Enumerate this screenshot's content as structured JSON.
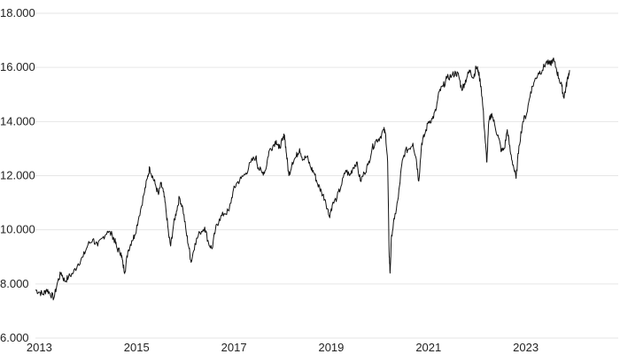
{
  "chart_data": {
    "type": "line",
    "title": "",
    "xlabel": "",
    "ylabel": "",
    "xlim": [
      2012.92,
      2024.9
    ],
    "ylim": [
      6000,
      18000
    ],
    "grid": "horizontal",
    "legend": "none",
    "line_color": "#111111",
    "grid_color": "#e6e6e6",
    "y_ticks": [
      {
        "value": 6000,
        "label": "6.000"
      },
      {
        "value": 8000,
        "label": "8.000"
      },
      {
        "value": 10000,
        "label": "10.000"
      },
      {
        "value": 12000,
        "label": "12.000"
      },
      {
        "value": 14000,
        "label": "14.000"
      },
      {
        "value": 16000,
        "label": "16.000"
      },
      {
        "value": 18000,
        "label": "18.000"
      }
    ],
    "x_ticks": [
      {
        "value": 2013.0,
        "label": "2013"
      },
      {
        "value": 2015.0,
        "label": "2015"
      },
      {
        "value": 2017.0,
        "label": "2017"
      },
      {
        "value": 2019.0,
        "label": "2019"
      },
      {
        "value": 2021.0,
        "label": "2021"
      },
      {
        "value": 2023.0,
        "label": "2023"
      }
    ],
    "series": [
      {
        "values": [
          [
            2012.92,
            7780
          ],
          [
            2013.0,
            7700
          ],
          [
            2013.08,
            7620
          ],
          [
            2013.15,
            7800
          ],
          [
            2013.22,
            7650
          ],
          [
            2013.3,
            7480
          ],
          [
            2013.38,
            8100
          ],
          [
            2013.45,
            8420
          ],
          [
            2013.52,
            8100
          ],
          [
            2013.6,
            8250
          ],
          [
            2013.7,
            8420
          ],
          [
            2013.8,
            8750
          ],
          [
            2013.9,
            9000
          ],
          [
            2014.0,
            9450
          ],
          [
            2014.1,
            9650
          ],
          [
            2014.2,
            9400
          ],
          [
            2014.3,
            9700
          ],
          [
            2014.4,
            9950
          ],
          [
            2014.5,
            9800
          ],
          [
            2014.55,
            9600
          ],
          [
            2014.6,
            9300
          ],
          [
            2014.68,
            9150
          ],
          [
            2014.72,
            8700
          ],
          [
            2014.76,
            8450
          ],
          [
            2014.82,
            9200
          ],
          [
            2014.9,
            9600
          ],
          [
            2014.96,
            9800
          ],
          [
            2015.05,
            10500
          ],
          [
            2015.15,
            11300
          ],
          [
            2015.22,
            11900
          ],
          [
            2015.27,
            12300
          ],
          [
            2015.32,
            12000
          ],
          [
            2015.38,
            11700
          ],
          [
            2015.45,
            11300
          ],
          [
            2015.5,
            11700
          ],
          [
            2015.55,
            11400
          ],
          [
            2015.6,
            10800
          ],
          [
            2015.66,
            9800
          ],
          [
            2015.7,
            9400
          ],
          [
            2015.76,
            10200
          ],
          [
            2015.82,
            10700
          ],
          [
            2015.88,
            11200
          ],
          [
            2015.95,
            10800
          ],
          [
            2016.02,
            9900
          ],
          [
            2016.08,
            9300
          ],
          [
            2016.12,
            8800
          ],
          [
            2016.2,
            9500
          ],
          [
            2016.3,
            9900
          ],
          [
            2016.4,
            10100
          ],
          [
            2016.48,
            9500
          ],
          [
            2016.55,
            9300
          ],
          [
            2016.62,
            10000
          ],
          [
            2016.7,
            10400
          ],
          [
            2016.8,
            10600
          ],
          [
            2016.9,
            10700
          ],
          [
            2016.98,
            11400
          ],
          [
            2017.05,
            11700
          ],
          [
            2017.15,
            11900
          ],
          [
            2017.25,
            12100
          ],
          [
            2017.35,
            12500
          ],
          [
            2017.45,
            12700
          ],
          [
            2017.5,
            12300
          ],
          [
            2017.58,
            12100
          ],
          [
            2017.65,
            12200
          ],
          [
            2017.72,
            12900
          ],
          [
            2017.8,
            13100
          ],
          [
            2017.87,
            13300
          ],
          [
            2017.92,
            13000
          ],
          [
            2018.0,
            13300
          ],
          [
            2018.04,
            13500
          ],
          [
            2018.08,
            12800
          ],
          [
            2018.13,
            12000
          ],
          [
            2018.2,
            12500
          ],
          [
            2018.28,
            12700
          ],
          [
            2018.35,
            13000
          ],
          [
            2018.42,
            12600
          ],
          [
            2018.5,
            12700
          ],
          [
            2018.58,
            12300
          ],
          [
            2018.65,
            12100
          ],
          [
            2018.72,
            11700
          ],
          [
            2018.8,
            11400
          ],
          [
            2018.88,
            11100
          ],
          [
            2018.96,
            10500
          ],
          [
            2019.02,
            10900
          ],
          [
            2019.12,
            11200
          ],
          [
            2019.2,
            11600
          ],
          [
            2019.3,
            12200
          ],
          [
            2019.38,
            12000
          ],
          [
            2019.45,
            12300
          ],
          [
            2019.52,
            12500
          ],
          [
            2019.6,
            11800
          ],
          [
            2019.68,
            12100
          ],
          [
            2019.76,
            12400
          ],
          [
            2019.84,
            13000
          ],
          [
            2019.92,
            13300
          ],
          [
            2020.0,
            13400
          ],
          [
            2020.08,
            13700
          ],
          [
            2020.12,
            13500
          ],
          [
            2020.16,
            12500
          ],
          [
            2020.19,
            9200
          ],
          [
            2020.21,
            8400
          ],
          [
            2020.24,
            9800
          ],
          [
            2020.3,
            10400
          ],
          [
            2020.38,
            11200
          ],
          [
            2020.45,
            12400
          ],
          [
            2020.52,
            12900
          ],
          [
            2020.6,
            13000
          ],
          [
            2020.68,
            13200
          ],
          [
            2020.75,
            12600
          ],
          [
            2020.8,
            11800
          ],
          [
            2020.86,
            13200
          ],
          [
            2020.92,
            13500
          ],
          [
            2021.0,
            14000
          ],
          [
            2021.08,
            14100
          ],
          [
            2021.15,
            14400
          ],
          [
            2021.22,
            15100
          ],
          [
            2021.3,
            15300
          ],
          [
            2021.38,
            15600
          ],
          [
            2021.48,
            15700
          ],
          [
            2021.56,
            15800
          ],
          [
            2021.62,
            15700
          ],
          [
            2021.68,
            15200
          ],
          [
            2021.74,
            15400
          ],
          [
            2021.8,
            15700
          ],
          [
            2021.86,
            15900
          ],
          [
            2021.92,
            15600
          ],
          [
            2021.98,
            16000
          ],
          [
            2022.02,
            15900
          ],
          [
            2022.08,
            15300
          ],
          [
            2022.12,
            14500
          ],
          [
            2022.17,
            13200
          ],
          [
            2022.2,
            12500
          ],
          [
            2022.24,
            14000
          ],
          [
            2022.3,
            14300
          ],
          [
            2022.37,
            13800
          ],
          [
            2022.44,
            13400
          ],
          [
            2022.5,
            12900
          ],
          [
            2022.56,
            13000
          ],
          [
            2022.62,
            13700
          ],
          [
            2022.68,
            12900
          ],
          [
            2022.74,
            12400
          ],
          [
            2022.8,
            11900
          ],
          [
            2022.86,
            13100
          ],
          [
            2022.94,
            14000
          ],
          [
            2023.02,
            14300
          ],
          [
            2023.1,
            15100
          ],
          [
            2023.18,
            15500
          ],
          [
            2023.26,
            15800
          ],
          [
            2023.34,
            15900
          ],
          [
            2023.42,
            16200
          ],
          [
            2023.5,
            16100
          ],
          [
            2023.56,
            16300
          ],
          [
            2023.62,
            16000
          ],
          [
            2023.68,
            15600
          ],
          [
            2023.74,
            15300
          ],
          [
            2023.78,
            14900
          ],
          [
            2023.82,
            15200
          ],
          [
            2023.86,
            15600
          ],
          [
            2023.9,
            15900
          ]
        ]
      }
    ]
  }
}
